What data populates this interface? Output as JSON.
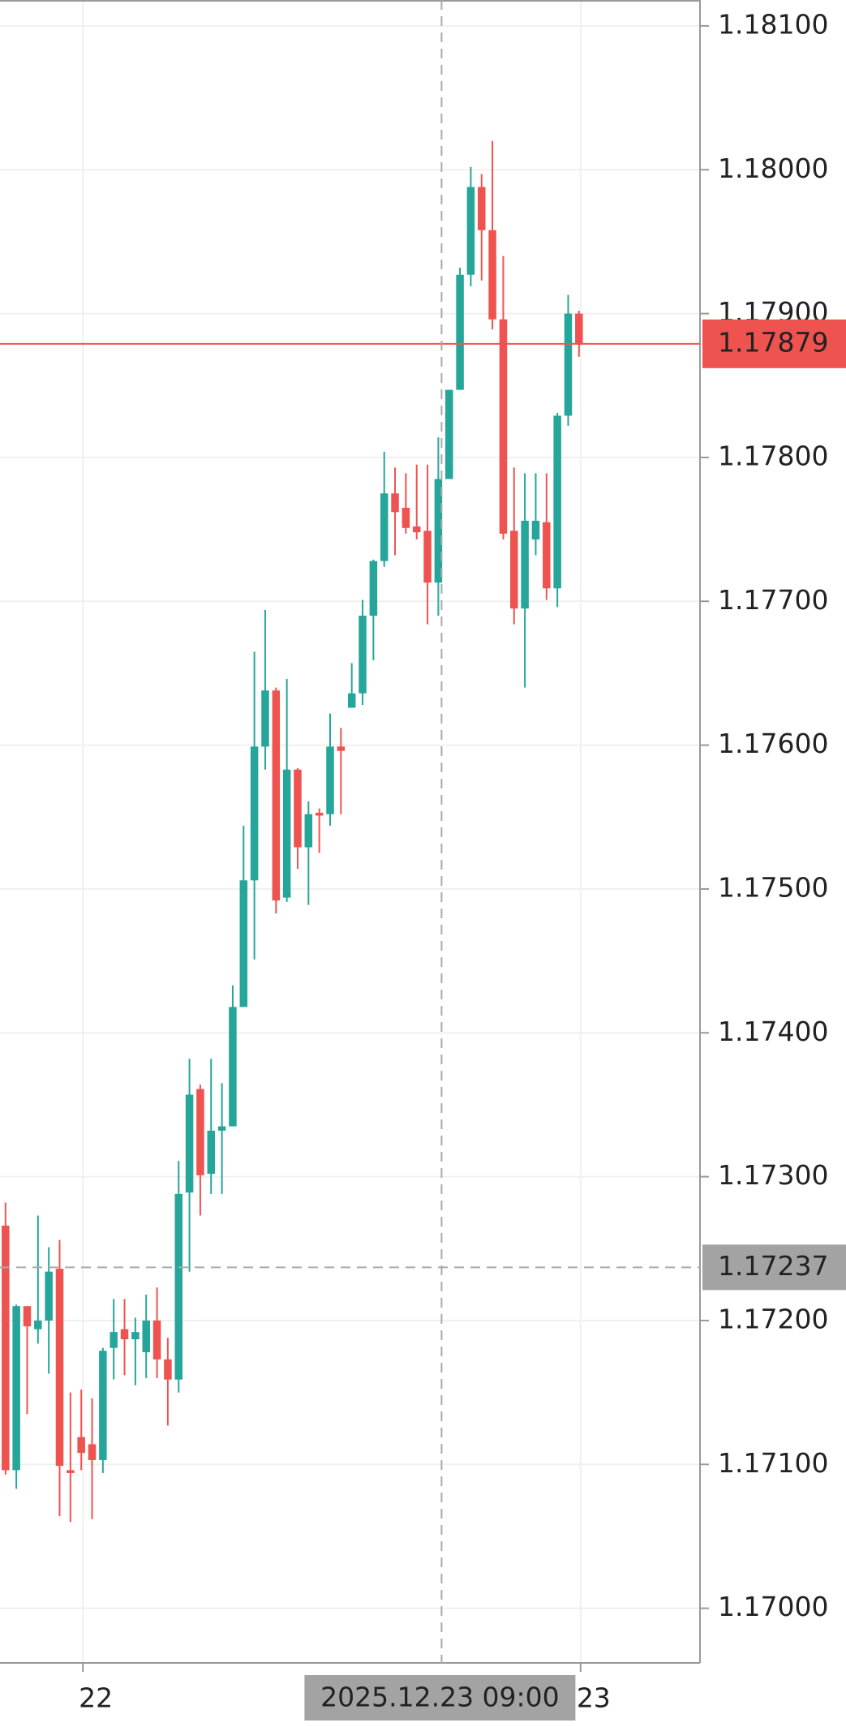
{
  "chart_data": {
    "type": "candlestick",
    "ylim": [
      1.16962,
      1.18118
    ],
    "yticks": [
      {
        "value": 1.17,
        "label": "1.17000"
      },
      {
        "value": 1.171,
        "label": "1.17100"
      },
      {
        "value": 1.172,
        "label": "1.17200"
      },
      {
        "value": 1.173,
        "label": "1.17300"
      },
      {
        "value": 1.174,
        "label": "1.17400"
      },
      {
        "value": 1.175,
        "label": "1.17500"
      },
      {
        "value": 1.176,
        "label": "1.17600"
      },
      {
        "value": 1.177,
        "label": "1.17700"
      },
      {
        "value": 1.178,
        "label": "1.17800"
      },
      {
        "value": 1.179,
        "label": "1.17900"
      },
      {
        "value": 1.18,
        "label": "1.18000"
      },
      {
        "value": 1.181,
        "label": "1.18100"
      }
    ],
    "grid": true,
    "up_color": "#26a69a",
    "down_color": "#ef5350",
    "categories": [
      null,
      null,
      null,
      null,
      null,
      null,
      null,
      "22",
      null,
      null,
      null,
      null,
      null,
      null,
      null,
      null,
      null,
      null,
      null,
      null,
      null,
      null,
      null,
      null,
      null,
      null,
      null,
      null,
      null,
      null,
      null,
      null,
      null,
      null,
      null,
      null,
      null,
      null,
      null,
      null,
      null,
      null,
      null,
      null,
      null,
      null,
      null,
      null,
      null,
      null,
      null,
      null,
      null,
      "23"
    ],
    "open": [
      1.17266,
      1.17096,
      1.1721,
      1.17194,
      1.172,
      1.17236,
      1.17096,
      1.17119,
      1.17114,
      1.17103,
      1.17181,
      1.17194,
      1.17187,
      1.17178,
      1.172,
      1.17173,
      1.17159,
      1.17289,
      1.17361,
      1.17302,
      1.17332,
      1.17335,
      1.17418,
      1.17506,
      1.17599,
      1.17638,
      1.17494,
      1.17583,
      1.17529,
      1.17553,
      1.17552,
      1.17599,
      1.17626,
      1.17636,
      1.1769,
      1.17728,
      1.17775,
      1.17765,
      1.17752,
      1.17749,
      1.17713,
      1.17785,
      1.17847,
      1.17927,
      1.17988,
      1.17958,
      1.17896,
      1.17749,
      1.17695,
      1.17743,
      1.17755,
      1.17709,
      1.17829,
      1.179
    ],
    "high": [
      1.17282,
      1.17211,
      1.1721,
      1.17273,
      1.17251,
      1.17256,
      1.1715,
      1.17152,
      1.17146,
      1.17181,
      1.17215,
      1.17215,
      1.17202,
      1.17218,
      1.17223,
      1.17188,
      1.17311,
      1.17382,
      1.17364,
      1.17382,
      1.17365,
      1.17433,
      1.17544,
      1.17665,
      1.17694,
      1.1764,
      1.17646,
      1.17584,
      1.17561,
      1.17556,
      1.17622,
      1.17612,
      1.17657,
      1.17701,
      1.17729,
      1.17804,
      1.17793,
      1.17789,
      1.17795,
      1.17795,
      1.17814,
      1.17847,
      1.17932,
      1.18002,
      1.17997,
      1.1802,
      1.1794,
      1.17793,
      1.17789,
      1.17789,
      1.17789,
      1.17831,
      1.17913,
      1.17902
    ],
    "low": [
      1.17093,
      1.17083,
      1.17135,
      1.17184,
      1.17163,
      1.17064,
      1.1706,
      1.17096,
      1.17062,
      1.17094,
      1.17159,
      1.17162,
      1.17155,
      1.1716,
      1.1716,
      1.17127,
      1.1715,
      1.17234,
      1.17273,
      1.17288,
      1.17288,
      1.17335,
      1.17418,
      1.17451,
      1.17583,
      1.17483,
      1.17491,
      1.17514,
      1.17489,
      1.17525,
      1.17544,
      1.17552,
      1.17626,
      1.17628,
      1.17659,
      1.17724,
      1.17732,
      1.17747,
      1.17743,
      1.17684,
      1.1769,
      1.17785,
      1.17847,
      1.17919,
      1.17923,
      1.17889,
      1.17743,
      1.17684,
      1.1764,
      1.17732,
      1.17701,
      1.17696,
      1.17822,
      1.1787
    ],
    "close": [
      1.17096,
      1.1721,
      1.17196,
      1.172,
      1.17234,
      1.17099,
      1.17094,
      1.17108,
      1.17103,
      1.17179,
      1.17192,
      1.17187,
      1.17192,
      1.172,
      1.17173,
      1.17159,
      1.17288,
      1.17357,
      1.17301,
      1.17332,
      1.17335,
      1.17418,
      1.17506,
      1.17599,
      1.17638,
      1.17492,
      1.17583,
      1.17529,
      1.17552,
      1.17551,
      1.17599,
      1.17596,
      1.17636,
      1.1769,
      1.17728,
      1.17775,
      1.17762,
      1.17751,
      1.17748,
      1.17713,
      1.17785,
      1.17847,
      1.17927,
      1.17988,
      1.17958,
      1.17896,
      1.17747,
      1.17695,
      1.17756,
      1.17756,
      1.17709,
      1.17829,
      1.179,
      1.17879
    ],
    "current_price": 1.17879,
    "crosshair": {
      "price": 1.17237,
      "time_label": "2025.12.23 09:00"
    }
  }
}
